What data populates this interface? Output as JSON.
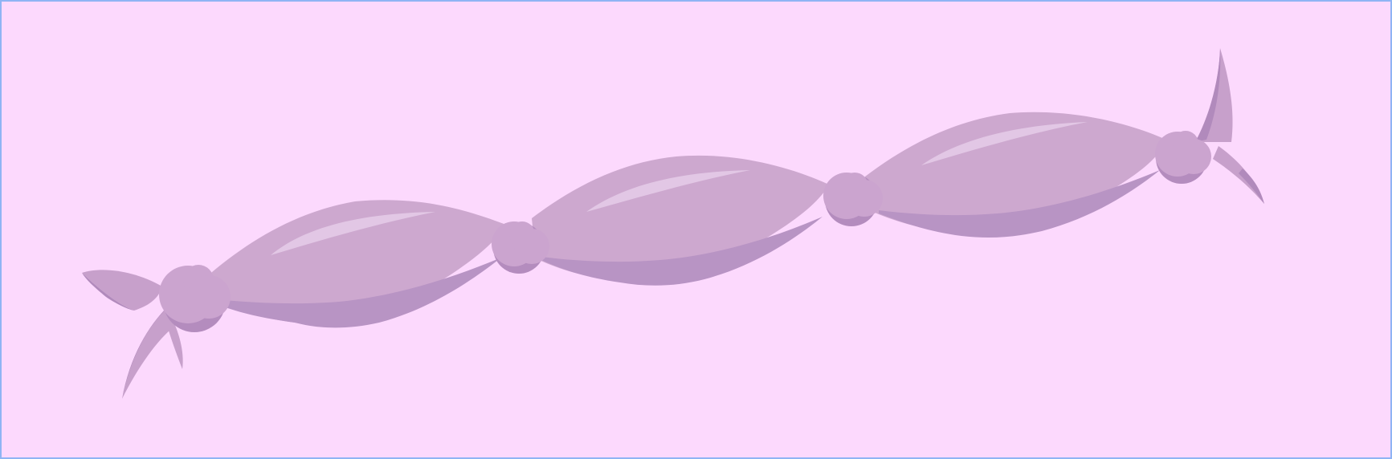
{
  "scene": {
    "subject": "balloon-chain",
    "colors": {
      "background": "#fcd9fd",
      "border": "#8fb4f4",
      "balloon": "#cda8cf",
      "balloon_shadow": "#b894c4",
      "highlight": "#e2c7e5",
      "knot": "#cba4cf",
      "knot_shadow": "#b48cbe",
      "ribbon": "#c7a0cb",
      "ribbon_shadow": "#b18abc"
    },
    "balloons": [
      {
        "id": "balloon-1"
      },
      {
        "id": "balloon-2"
      },
      {
        "id": "balloon-3"
      }
    ],
    "knots": [
      {
        "id": "knot-1"
      },
      {
        "id": "knot-2"
      },
      {
        "id": "knot-3"
      },
      {
        "id": "knot-4"
      }
    ]
  }
}
